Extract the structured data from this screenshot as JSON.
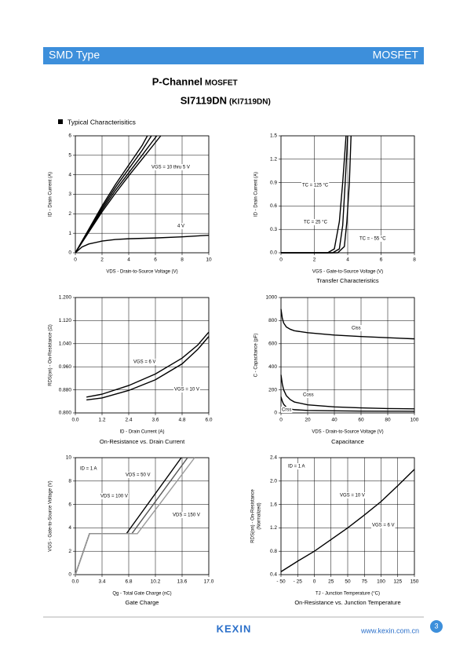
{
  "header": {
    "left": "SMD Type",
    "right": "MOSFET"
  },
  "title": {
    "main": "P-Channel",
    "main_suffix": "MOSFET",
    "part": "SI7119DN",
    "part_alt": "(KI7119DN)"
  },
  "section": "Typical  Characterisitics",
  "chart_data": [
    {
      "type": "line",
      "title": "",
      "xlabel": "VDS - Drain-to-Source Voltage (V)",
      "ylabel": "ID - Drain Current (A)",
      "xlim": [
        0,
        10
      ],
      "ylim": [
        0,
        6
      ],
      "xticks": [
        0,
        2,
        4,
        6,
        8,
        10
      ],
      "yticks": [
        0,
        1,
        2,
        3,
        4,
        5,
        6
      ],
      "grid": true,
      "series": [
        {
          "color": "#000000",
          "x": [
            0,
            1,
            2,
            3,
            4,
            5,
            5.4
          ],
          "values": [
            0,
            1.2,
            2.4,
            3.5,
            4.5,
            5.5,
            6
          ]
        },
        {
          "color": "#000000",
          "x": [
            0,
            1,
            2,
            3,
            4,
            5,
            5.7
          ],
          "values": [
            0,
            1.15,
            2.3,
            3.35,
            4.3,
            5.25,
            6
          ]
        },
        {
          "color": "#000000",
          "x": [
            0,
            1,
            2,
            3,
            4,
            5,
            6.1
          ],
          "values": [
            0,
            1.1,
            2.2,
            3.2,
            4.1,
            5,
            6
          ]
        },
        {
          "color": "#000000",
          "x": [
            0,
            1,
            2,
            3,
            4,
            5,
            6.4
          ],
          "values": [
            0,
            1.05,
            2.1,
            3.05,
            3.95,
            4.8,
            6
          ]
        },
        {
          "color": "#000000",
          "x": [
            0,
            0.5,
            1,
            2,
            3,
            4,
            6,
            8,
            10
          ],
          "values": [
            0,
            0.3,
            0.45,
            0.6,
            0.68,
            0.72,
            0.76,
            0.82,
            0.9
          ]
        }
      ],
      "annotations": [
        "VGS = 10 thru 5 V",
        "4 V"
      ]
    },
    {
      "type": "line",
      "title": "Transfer Characteristics",
      "xlabel": "VGS - Gate-to-Source Voltage (V)",
      "ylabel": "ID - Drain Current (A)",
      "xlim": [
        0,
        8
      ],
      "ylim": [
        0,
        1.5
      ],
      "xticks": [
        0,
        2,
        4,
        6,
        8
      ],
      "yticks": [
        {
          "value": 0,
          "label": "0.0"
        },
        0.3,
        0.6,
        0.9,
        1.2,
        1.5
      ],
      "grid": true,
      "series": [
        {
          "color": "#000000",
          "x": [
            0,
            2.8,
            3.2,
            3.5,
            3.7,
            3.9
          ],
          "values": [
            0,
            0,
            0.05,
            0.4,
            0.9,
            1.5
          ]
        },
        {
          "color": "#000000",
          "x": [
            0,
            3.1,
            3.5,
            3.7,
            3.85,
            4.0
          ],
          "values": [
            0,
            0,
            0.05,
            0.35,
            0.9,
            1.5
          ]
        },
        {
          "color": "#000000",
          "x": [
            0,
            3.4,
            3.8,
            3.95,
            4.1,
            4.2
          ],
          "values": [
            0,
            0,
            0.08,
            0.4,
            0.9,
            1.5
          ]
        }
      ],
      "annotations": [
        "TC = 125 °C",
        "TC = 25 °C",
        "TC = - 55 °C"
      ]
    },
    {
      "type": "line",
      "title": "On-Resistance vs. Drain Current",
      "xlabel": "ID - Drain Current (A)",
      "ylabel": "RDS(on) - On-Resistance (Ω)",
      "xlim": [
        0,
        6
      ],
      "ylim": [
        0.8,
        1.2
      ],
      "xticks": [
        {
          "value": 0,
          "label": "0.0"
        },
        1.2,
        2.4,
        3.6,
        4.8,
        {
          "value": 6,
          "label": "6.0"
        }
      ],
      "yticks": [
        {
          "value": 0.8,
          "label": "0.800"
        },
        {
          "value": 0.88,
          "label": "0.880"
        },
        {
          "value": 0.96,
          "label": "0.960"
        },
        {
          "value": 1.04,
          "label": "1.040"
        },
        {
          "value": 1.12,
          "label": "1.120"
        },
        {
          "value": 1.2,
          "label": "1.200"
        }
      ],
      "grid": true,
      "series": [
        {
          "color": "#000000",
          "x": [
            0.5,
            1.2,
            2.4,
            3.6,
            4.8,
            5.5,
            6
          ],
          "values": [
            0.855,
            0.865,
            0.895,
            0.935,
            0.99,
            1.035,
            1.08
          ]
        },
        {
          "color": "#000000",
          "x": [
            0.5,
            1.2,
            2.4,
            3.6,
            4.8,
            5.5,
            6
          ],
          "values": [
            0.845,
            0.852,
            0.878,
            0.915,
            0.97,
            1.02,
            1.065
          ]
        }
      ],
      "annotations": [
        "VGS = 6 V",
        "VGS = 10 V"
      ]
    },
    {
      "type": "line",
      "title": "Capacitance",
      "xlabel": "VDS - Drain-to-Source Voltage (V)",
      "ylabel": "C - Capacitance (pF)",
      "xlim": [
        0,
        100
      ],
      "ylim": [
        0,
        1000
      ],
      "xticks": [
        0,
        20,
        40,
        60,
        80,
        100
      ],
      "yticks": [
        0,
        200,
        400,
        600,
        800,
        1000
      ],
      "grid": true,
      "series": [
        {
          "color": "#000000",
          "x": [
            0,
            1,
            2,
            4,
            7,
            10,
            20,
            40,
            60,
            80,
            100
          ],
          "values": [
            900,
            820,
            780,
            745,
            725,
            712,
            695,
            675,
            662,
            652,
            642
          ]
        },
        {
          "color": "#000000",
          "x": [
            0,
            1,
            2,
            4,
            7,
            10,
            20,
            40,
            60,
            80,
            100
          ],
          "values": [
            330,
            250,
            200,
            150,
            115,
            95,
            70,
            52,
            44,
            38,
            35
          ]
        },
        {
          "color": "#000000",
          "x": [
            0,
            1,
            2,
            4,
            7,
            10,
            20,
            40,
            60,
            80,
            100
          ],
          "values": [
            140,
            100,
            75,
            50,
            35,
            28,
            22,
            18,
            16,
            15,
            14
          ]
        }
      ],
      "annotations": [
        "Ciss",
        "Coss",
        "Crss"
      ]
    },
    {
      "type": "line",
      "title": "Gate Charge",
      "xlabel": "Qg - Total Gate Charge (nC)",
      "ylabel": "VGS - Gate-to-Source Voltage (V)",
      "xlim": [
        0,
        17
      ],
      "ylim": [
        0,
        10
      ],
      "xticks": [
        {
          "value": 0,
          "label": "0.0"
        },
        3.4,
        6.8,
        10.2,
        13.6,
        {
          "value": 17,
          "label": "17.0"
        }
      ],
      "yticks": [
        0,
        2,
        4,
        6,
        8,
        10
      ],
      "grid": true,
      "series": [
        {
          "color": "#000000",
          "x": [
            0,
            1.8,
            6.5,
            13.5
          ],
          "values": [
            0,
            3.5,
            3.5,
            10
          ]
        },
        {
          "color": "#555555",
          "x": [
            0,
            1.8,
            7.2,
            14.3
          ],
          "values": [
            0,
            3.5,
            3.5,
            10
          ]
        },
        {
          "color": "#999999",
          "x": [
            0,
            1.8,
            7.9,
            15.2
          ],
          "values": [
            0,
            3.5,
            3.5,
            10
          ]
        }
      ],
      "annotations": [
        "ID = 1 A",
        "VDS = 50 V",
        "VDS = 100 V",
        "VDS = 150 V"
      ]
    },
    {
      "type": "line",
      "title": "On-Resistance vs. Junction Temperature",
      "xlabel": "TJ - Junction Temperature (°C)",
      "ylabel": "RDS(on) - On-Resistance",
      "ylabel2": "(Normalized)",
      "xlim": [
        -50,
        150
      ],
      "ylim": [
        0.4,
        2.4
      ],
      "xticks": [
        {
          "value": -50,
          "label": "- 50"
        },
        {
          "value": -25,
          "label": "- 25"
        },
        0,
        25,
        50,
        75,
        100,
        125,
        150
      ],
      "yticks": [
        0.4,
        0.8,
        1.2,
        1.6,
        {
          "value": 2,
          "label": "2.0"
        },
        2.4
      ],
      "grid": true,
      "series": [
        {
          "color": "#000000",
          "x": [
            -50,
            -25,
            0,
            25,
            50,
            75,
            100,
            125,
            150
          ],
          "values": [
            0.45,
            0.63,
            0.8,
            1.0,
            1.2,
            1.42,
            1.65,
            1.92,
            2.2
          ]
        }
      ],
      "annotations": [
        "ID = 1 A",
        "VGS = 10 V",
        "VGS = 6 V"
      ]
    }
  ],
  "footer": {
    "logo": "KEXIN",
    "url": "www.kexin.com.cn",
    "page": "3"
  }
}
